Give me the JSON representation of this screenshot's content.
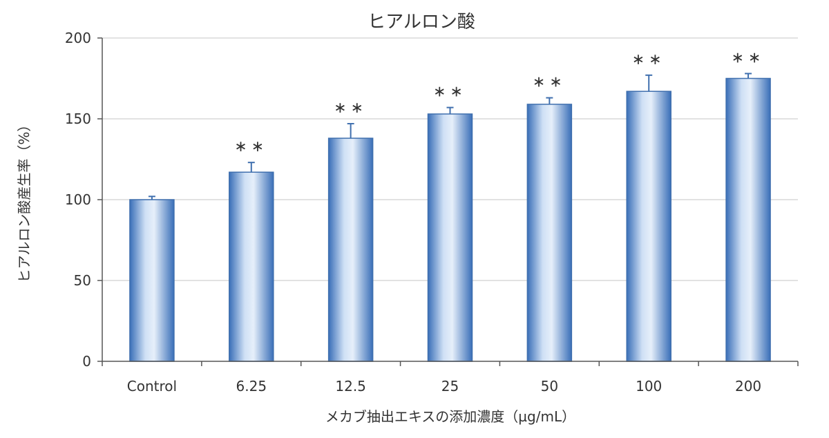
{
  "chart_data": {
    "type": "bar",
    "title": "ヒアルロン酸",
    "xlabel": "メカブ抽出エキスの添加濃度（µg/mL）",
    "ylabel": "ヒアルロン酸産生率（%）",
    "categories": [
      "Control",
      "6.25",
      "12.5",
      "25",
      "50",
      "100",
      "200"
    ],
    "values": [
      100,
      117,
      138,
      153,
      159,
      167,
      175
    ],
    "errors": [
      2,
      6,
      9,
      4,
      4,
      10,
      3
    ],
    "significance": [
      "",
      "**",
      "**",
      "**",
      "**",
      "**",
      "**"
    ],
    "ylim": [
      0,
      200
    ],
    "yticks": [
      0,
      50,
      100,
      150,
      200
    ],
    "grid": true,
    "bar_color": "#4f81bd"
  }
}
